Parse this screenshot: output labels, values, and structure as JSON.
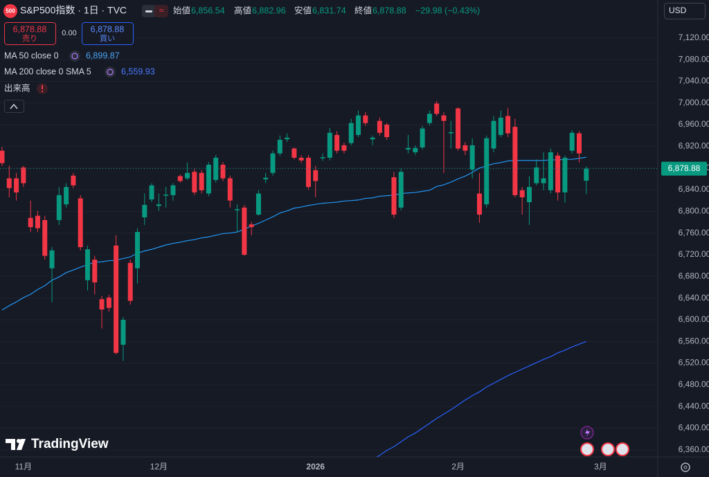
{
  "chart_data": {
    "type": "candlestick",
    "title": "S&P500指数 · 1日 · TVC",
    "categories": [
      null,
      null,
      null,
      "11月",
      null,
      null,
      null,
      null,
      null,
      null,
      null,
      null,
      null,
      null,
      null,
      null,
      null,
      null,
      null,
      null,
      null,
      null,
      "12月",
      null,
      null,
      null,
      null,
      null,
      null,
      null,
      null,
      null,
      null,
      null,
      null,
      null,
      null,
      null,
      null,
      null,
      null,
      null,
      null,
      null,
      "2026",
      null,
      null,
      null,
      null,
      null,
      null,
      null,
      null,
      null,
      null,
      null,
      null,
      null,
      null,
      null,
      null,
      null,
      null,
      null,
      "2月",
      null,
      null,
      null,
      null,
      null,
      null,
      null,
      null,
      null,
      null,
      null,
      null,
      null,
      null,
      null,
      null,
      null,
      null,
      null,
      "3月"
    ],
    "open": [
      6912,
      6861,
      6861,
      6881,
      6788,
      6792,
      6784,
      6695,
      6784,
      6813,
      6866,
      6824,
      6673,
      6711,
      6638,
      6641,
      6737,
      6554,
      6705,
      6695,
      6789,
      6822,
      6810,
      6829,
      6830,
      6865,
      6861,
      6873,
      6871,
      6833,
      6858,
      6886,
      6861,
      6802,
      6807,
      6776,
      6794,
      6859,
      6871,
      6907,
      6933,
      6916,
      6899,
      6899,
      6876,
      6898,
      6899,
      6941,
      6922,
      6926,
      6941,
      6977,
      6933,
      6967,
      6960,
      6863,
      6807,
      6914,
      6909,
      6918,
      6963,
      6999,
      6977,
      6944,
      6990,
      6922,
      6877,
      6833,
      6813,
      6916,
      6941,
      6976,
      6956,
      6839,
      6817,
      6852,
      6852,
      6839,
      6903,
      6835,
      6912,
      6944,
      6856.54,
      null,
      null
    ],
    "high": [
      6919,
      6884,
      6871,
      6884,
      6820,
      6801,
      6792,
      6734,
      6845,
      6852,
      6871,
      6830,
      6737,
      6718,
      6644,
      6646,
      6756,
      6605,
      6711,
      6769,
      6833,
      6852,
      6833,
      6845,
      6852,
      6868,
      6890,
      6879,
      6876,
      6891,
      6904,
      6891,
      6866,
      6813,
      6812,
      6781,
      6839,
      6871,
      6912,
      6940,
      6944,
      6918,
      6904,
      6904,
      6884,
      6907,
      6954,
      6948,
      6927,
      6971,
      6986,
      6983,
      6940,
      6973,
      6963,
      6873,
      6879,
      6941,
      6922,
      6958,
      6986,
      7004,
      6983,
      6967,
      6992,
      6928,
      6935,
      6871,
      6940,
      6976,
      6986,
      6991,
      6971,
      6845,
      6865,
      6896,
      6909,
      6916,
      6909,
      6903,
      6950,
      6948,
      6882.96,
      null,
      null
    ],
    "low": [
      6884,
      6826,
      6820,
      6845,
      6762,
      6762,
      6711,
      6632,
      6775,
      6807,
      6843,
      6728,
      6654,
      6647,
      6584,
      6615,
      6536,
      6524,
      6628,
      6667,
      6775,
      6817,
      6801,
      6807,
      6820,
      6853,
      6858,
      6830,
      6833,
      6828,
      6853,
      6856,
      6807,
      6762,
      6718,
      6756,
      6792,
      6852,
      6866,
      6902,
      6928,
      6896,
      6889,
      6840,
      6826,
      6893,
      6894,
      6907,
      6907,
      6922,
      6937,
      6958,
      6922,
      6940,
      6932,
      6788,
      6802,
      6907,
      6904,
      6914,
      6958,
      6976,
      6871,
      6916,
      6912,
      6904,
      6861,
      6779,
      6807,
      6909,
      6937,
      6937,
      6826,
      6794,
      6775,
      6848,
      6839,
      6833,
      6820,
      6816,
      6907,
      6890,
      6831.74,
      null,
      null
    ],
    "close": [
      6889,
      6843,
      6835,
      6852,
      6771,
      6769,
      6718,
      6728,
      6830,
      6845,
      6848,
      6734,
      6730,
      6669,
      6619,
      6622,
      6539,
      6600,
      6635,
      6762,
      6812,
      6848,
      6813,
      6831,
      6848,
      6856,
      6871,
      6835,
      6839,
      6886,
      6899,
      6861,
      6820,
      6804,
      6720,
      6771,
      6833,
      6862,
      6907,
      6932,
      6936,
      6899,
      6894,
      6845,
      6856,
      6900,
      6945,
      6912,
      6912,
      6963,
      6977,
      6963,
      6936,
      6945,
      6937,
      6794,
      6873,
      6917,
      6917,
      6953,
      6980,
      6980,
      6967,
      6946,
      6916,
      6912,
      6922,
      6794,
      6935,
      6967,
      6973,
      6944,
      6830,
      6826,
      6845,
      6881,
      6861,
      6909,
      6835,
      6899,
      6945,
      6907,
      6878.88,
      null,
      null
    ],
    "up_color": "#089981",
    "down_color": "#f23645",
    "series": [
      {
        "name": "MA 50 close 0",
        "color": "#2196f3",
        "value_label": "6,899.87",
        "values": [
          6618,
          6626,
          6633,
          6641,
          6647,
          6656,
          6663,
          6673,
          6679,
          6687,
          6692,
          6697,
          6702,
          6706,
          6707,
          6709,
          6710,
          6713,
          6716,
          6723,
          6727,
          6730,
          6734,
          6738,
          6741,
          6743,
          6746,
          6748,
          6751,
          6753,
          6756,
          6759,
          6760,
          6762,
          6767,
          6773,
          6778,
          6784,
          6790,
          6797,
          6801,
          6806,
          6808,
          6811,
          6813,
          6815,
          6816,
          6817,
          6819,
          6820,
          6821,
          6824,
          6825,
          6828,
          6829,
          6830,
          6833,
          6834,
          6835,
          6837,
          6839,
          6846,
          6849,
          6854,
          6860,
          6865,
          6872,
          6880,
          6884,
          6888,
          6890,
          6893,
          6894,
          6894,
          6894,
          6894,
          6894,
          6895,
          6895,
          6896,
          6896,
          6898,
          6899.87,
          null,
          null
        ]
      },
      {
        "name": "MA 200 close 0 SMA 5",
        "color": "#2962ff",
        "value_label": "6,559.93",
        "values": [
          null,
          null,
          null,
          null,
          null,
          null,
          null,
          null,
          null,
          null,
          null,
          null,
          null,
          null,
          null,
          null,
          null,
          null,
          null,
          null,
          null,
          null,
          null,
          null,
          null,
          null,
          null,
          null,
          null,
          null,
          null,
          null,
          null,
          null,
          null,
          null,
          null,
          null,
          null,
          null,
          null,
          null,
          null,
          null,
          null,
          null,
          null,
          null,
          null,
          null,
          null,
          null,
          6342,
          6350,
          6359,
          6366,
          6375,
          6384,
          6391,
          6400,
          6409,
          6418,
          6426,
          6434,
          6443,
          6452,
          6460,
          6467,
          6476,
          6483,
          6490,
          6497,
          6503,
          6509,
          6515,
          6521,
          6527,
          6532,
          6539,
          6544,
          6550,
          6555,
          6559.93,
          null,
          null
        ]
      }
    ],
    "last_price": 6878.88,
    "last_price_label": "6,878.88",
    "ylim": [
      6347,
      7190
    ],
    "yticks": [
      {
        "value": 6360,
        "label": "6,360.00"
      },
      {
        "value": 6400,
        "label": "6,400.00"
      },
      {
        "value": 6440,
        "label": "6,440.00"
      },
      {
        "value": 6480,
        "label": "6,480.00"
      },
      {
        "value": 6520,
        "label": "6,520.00"
      },
      {
        "value": 6560,
        "label": "6,560.00"
      },
      {
        "value": 6600,
        "label": "6,600.00"
      },
      {
        "value": 6640,
        "label": "6,640.00"
      },
      {
        "value": 6680,
        "label": "6,680.00"
      },
      {
        "value": 6720,
        "label": "6,720.00"
      },
      {
        "value": 6760,
        "label": "6,760.00"
      },
      {
        "value": 6800,
        "label": "6,800.00"
      },
      {
        "value": 6840,
        "label": "6,840.00"
      },
      {
        "value": 6880,
        "label": "6,880.00"
      },
      {
        "value": 6920,
        "label": "6,920.00"
      },
      {
        "value": 6960,
        "label": "6,960.00"
      },
      {
        "value": 7000,
        "label": "7,000.00"
      },
      {
        "value": 7040,
        "label": "7,040.00"
      },
      {
        "value": 7080,
        "label": "7,080.00"
      },
      {
        "value": 7120,
        "label": "7,120.00"
      }
    ],
    "grid": true
  },
  "ui": {
    "badge": "500",
    "open_label": "始値",
    "open": "6,856.54",
    "high_label": "高値",
    "high": "6,882.96",
    "low_label": "安値",
    "low": "6,831.74",
    "close_label": "終値",
    "close": "6,878.88",
    "change": "−29.98 (−0.43%)",
    "sell_price": "6,878.88",
    "sell": "売り",
    "spread": "0.00",
    "buy_price": "6,878.88",
    "buy": "買い",
    "volume": "出来高",
    "currency": "USD",
    "brand": "TradingView"
  }
}
